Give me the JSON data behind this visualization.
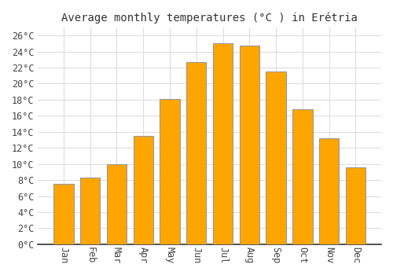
{
  "title": "Average monthly temperatures (°C ) in Erétria",
  "months": [
    "Jan",
    "Feb",
    "Mar",
    "Apr",
    "May",
    "Jun",
    "Jul",
    "Aug",
    "Sep",
    "Oct",
    "Nov",
    "Dec"
  ],
  "values": [
    7.5,
    8.3,
    10.0,
    13.5,
    18.1,
    22.7,
    25.0,
    24.7,
    21.5,
    16.8,
    13.2,
    9.6
  ],
  "bar_color": "#FFA500",
  "bar_edge_color": "#999999",
  "background_color": "#ffffff",
  "plot_bg_color": "#ffffff",
  "grid_color": "#dddddd",
  "ylim": [
    0,
    27
  ],
  "ytick_step": 2,
  "title_fontsize": 10,
  "tick_fontsize": 8.5
}
